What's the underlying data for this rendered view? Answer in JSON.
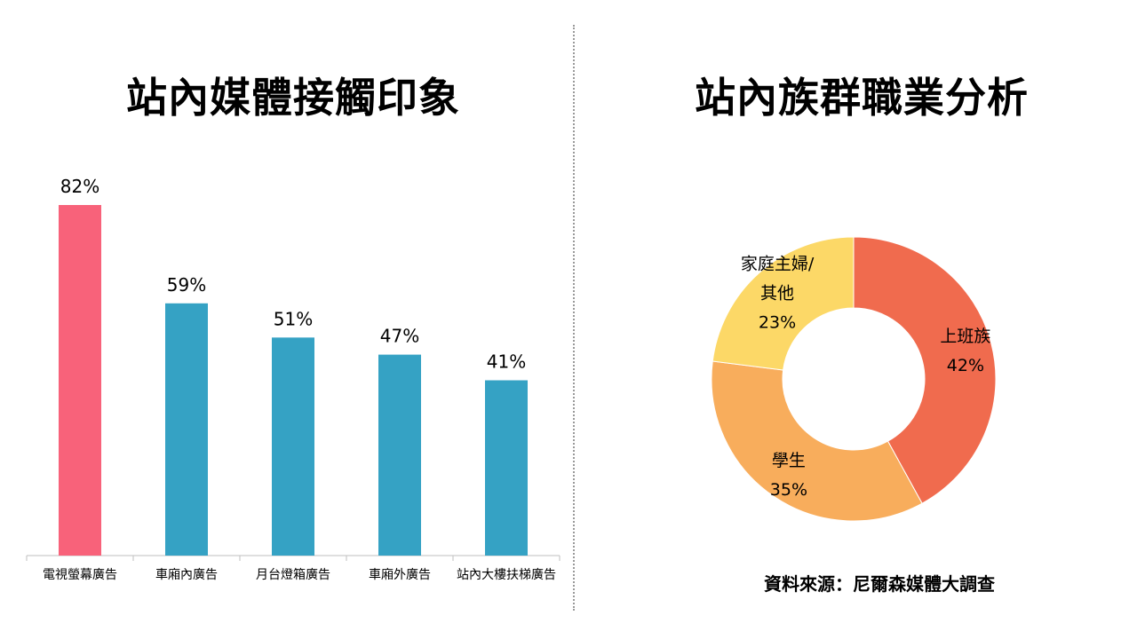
{
  "source": "資料來源：尼爾森媒體大調查",
  "chart_data": [
    {
      "type": "bar",
      "title": "站內媒體接觸印象",
      "categories": [
        "電視螢幕廣告",
        "車廂內廣告",
        "月台燈箱廣告",
        "車廂外廣告",
        "站內大樓扶梯廣告"
      ],
      "values": [
        82,
        59,
        51,
        47,
        41
      ],
      "value_labels": [
        "82%",
        "59%",
        "51%",
        "47%",
        "41%"
      ],
      "colors": [
        "#f8627a",
        "#35a2c4",
        "#35a2c4",
        "#35a2c4",
        "#35a2c4"
      ],
      "xlabel": "",
      "ylabel": "",
      "ylim": [
        0,
        82
      ],
      "unit": "%",
      "grid": false
    },
    {
      "type": "pie",
      "title": "站內族群職業分析",
      "donut": true,
      "slices": [
        {
          "label_lines": [
            "上班族"
          ],
          "value": 42,
          "value_label": "42%",
          "color": "#f06b4e"
        },
        {
          "label_lines": [
            "學生"
          ],
          "value": 35,
          "value_label": "35%",
          "color": "#f8ad5c"
        },
        {
          "label_lines": [
            "家庭主婦/",
            "其他"
          ],
          "value": 23,
          "value_label": "23%",
          "color": "#fcd867"
        }
      ]
    }
  ]
}
